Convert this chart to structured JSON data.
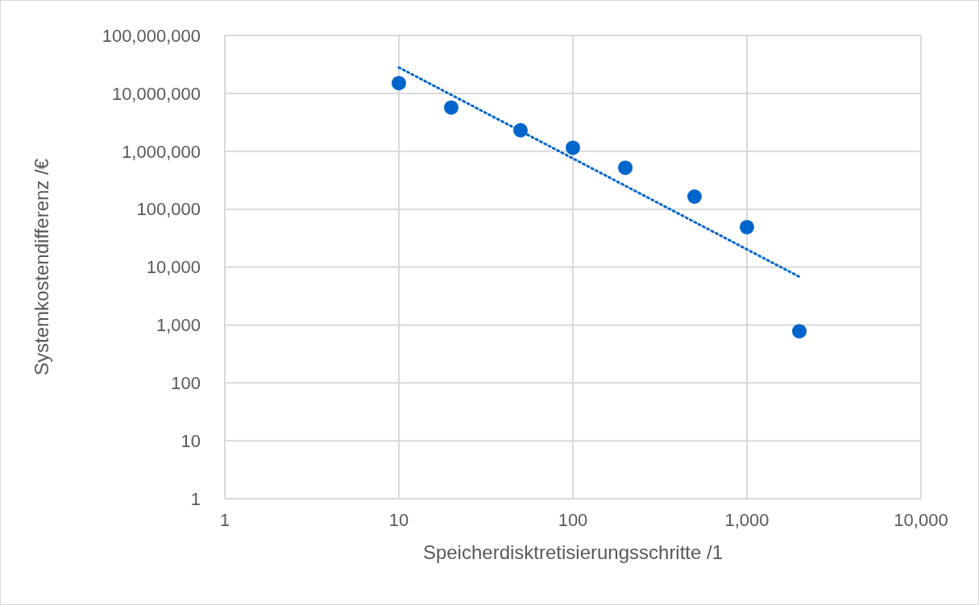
{
  "chart_data": {
    "type": "scatter",
    "xlabel": "Speicherdisktretisierungsschritte /1",
    "ylabel": "Systemkostendifferenz /€",
    "log": "xy",
    "grid": true,
    "xlim": [
      1,
      10000
    ],
    "xticks": [
      1,
      10,
      100,
      {
        "value": 1000,
        "label": "1,000"
      },
      {
        "value": 10000,
        "label": "10,000"
      }
    ],
    "ylim": [
      1,
      100000000
    ],
    "yticks": [
      1,
      10,
      100,
      {
        "value": 1000,
        "label": "1,000"
      },
      {
        "value": 10000,
        "label": "10,000"
      },
      {
        "value": 100000,
        "label": "100,000"
      },
      {
        "value": 1000000,
        "label": "1,000,000"
      },
      {
        "value": 10000000,
        "label": "10,000,000"
      },
      {
        "value": 100000000,
        "label": "100,000,000"
      }
    ],
    "series": [
      {
        "type": "scatter",
        "color": "#0066cc",
        "marker": "circle",
        "x": [
          10,
          20,
          50,
          100,
          200,
          500,
          1000,
          2000
        ],
        "values": [
          15000000,
          5700000,
          2300000,
          1150000,
          520000,
          165000,
          49000,
          780
        ]
      },
      {
        "type": "line",
        "color": "#0066cc",
        "marker": "none",
        "line_style": "dotted",
        "x": [
          10,
          2000
        ],
        "values": [
          28000000,
          6800
        ]
      }
    ]
  }
}
